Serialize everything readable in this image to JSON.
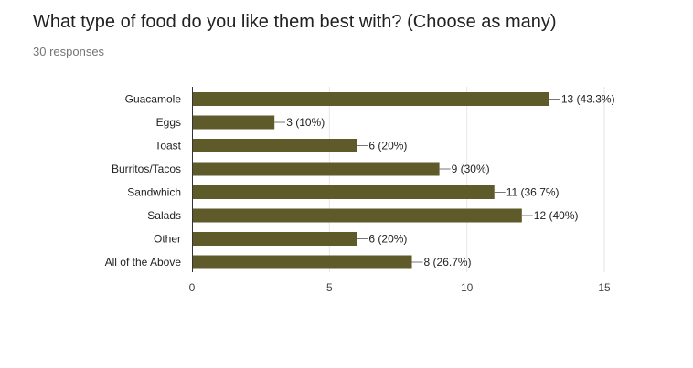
{
  "form": {
    "question": "What type of food do you like them best with? (Choose as many)",
    "responses": "30 responses"
  },
  "colors": {
    "bar": "#5e5a2a",
    "grid": "#e6e6e6",
    "axis": "#333333",
    "connector": "#777777"
  },
  "chart_data": {
    "type": "bar",
    "orientation": "horizontal",
    "categories": [
      "Guacamole",
      "Eggs",
      "Toast",
      "Burritos/Tacos",
      "Sandwhich",
      "Salads",
      "Other",
      "All of the Above"
    ],
    "values": [
      13,
      3,
      6,
      9,
      11,
      12,
      6,
      8
    ],
    "data_labels": [
      "13 (43.3%)",
      "3 (10%)",
      "6 (20%)",
      "9 (30%)",
      "11 (36.7%)",
      "12 (40%)",
      "6 (20%)",
      "8 (26.7%)"
    ],
    "xlim": [
      0,
      15
    ],
    "xticks": [
      0,
      5,
      10,
      15
    ],
    "grid": true,
    "legend": "none"
  }
}
